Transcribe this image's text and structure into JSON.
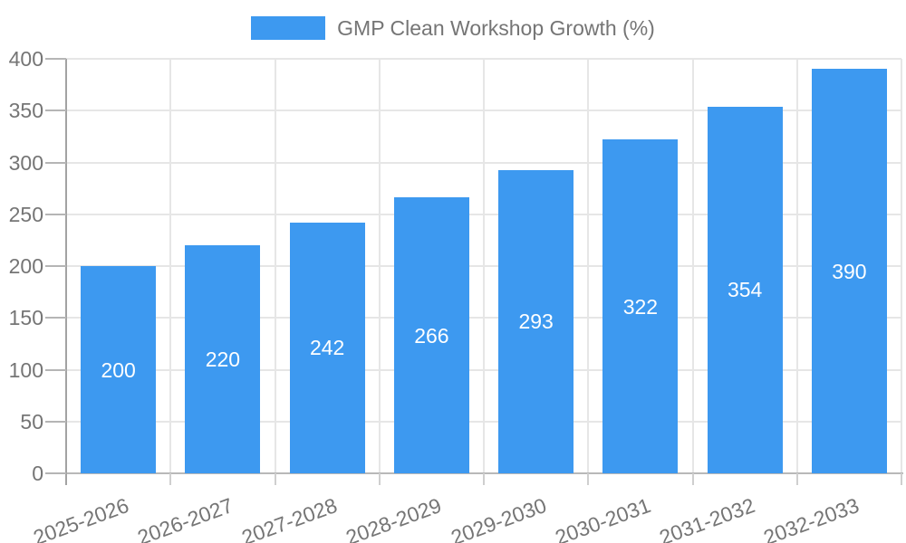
{
  "chart_data": {
    "type": "bar",
    "title": "GMP Clean Workshop Growth (%)",
    "series_name": "GMP Clean Workshop Growth (%)",
    "categories": [
      "2025-2026",
      "2026-2027",
      "2027-2028",
      "2028-2029",
      "2029-2030",
      "2030-2031",
      "2031-2032",
      "2032-2033"
    ],
    "values": [
      200,
      220,
      242,
      266,
      293,
      322,
      354,
      390
    ],
    "xlabel": "",
    "ylabel": "",
    "ylim": [
      0,
      400
    ],
    "yticks": [
      0,
      50,
      100,
      150,
      200,
      250,
      300,
      350,
      400
    ],
    "grid": true,
    "legend_position": "top-center",
    "x_label_rotation_deg": -20,
    "colors": {
      "bar": "#3D99F0",
      "bar_value_text": "#FFFFFF",
      "axis_text": "#757575",
      "grid_line": "#E6E6E6",
      "y_axis_line": "#A3A3A3",
      "x_axis_line": "#B8B8B8",
      "tick_line": "#B5B5B5",
      "boundary_tick_line": "#CFCFCF",
      "background": "#FFFFFF"
    }
  }
}
